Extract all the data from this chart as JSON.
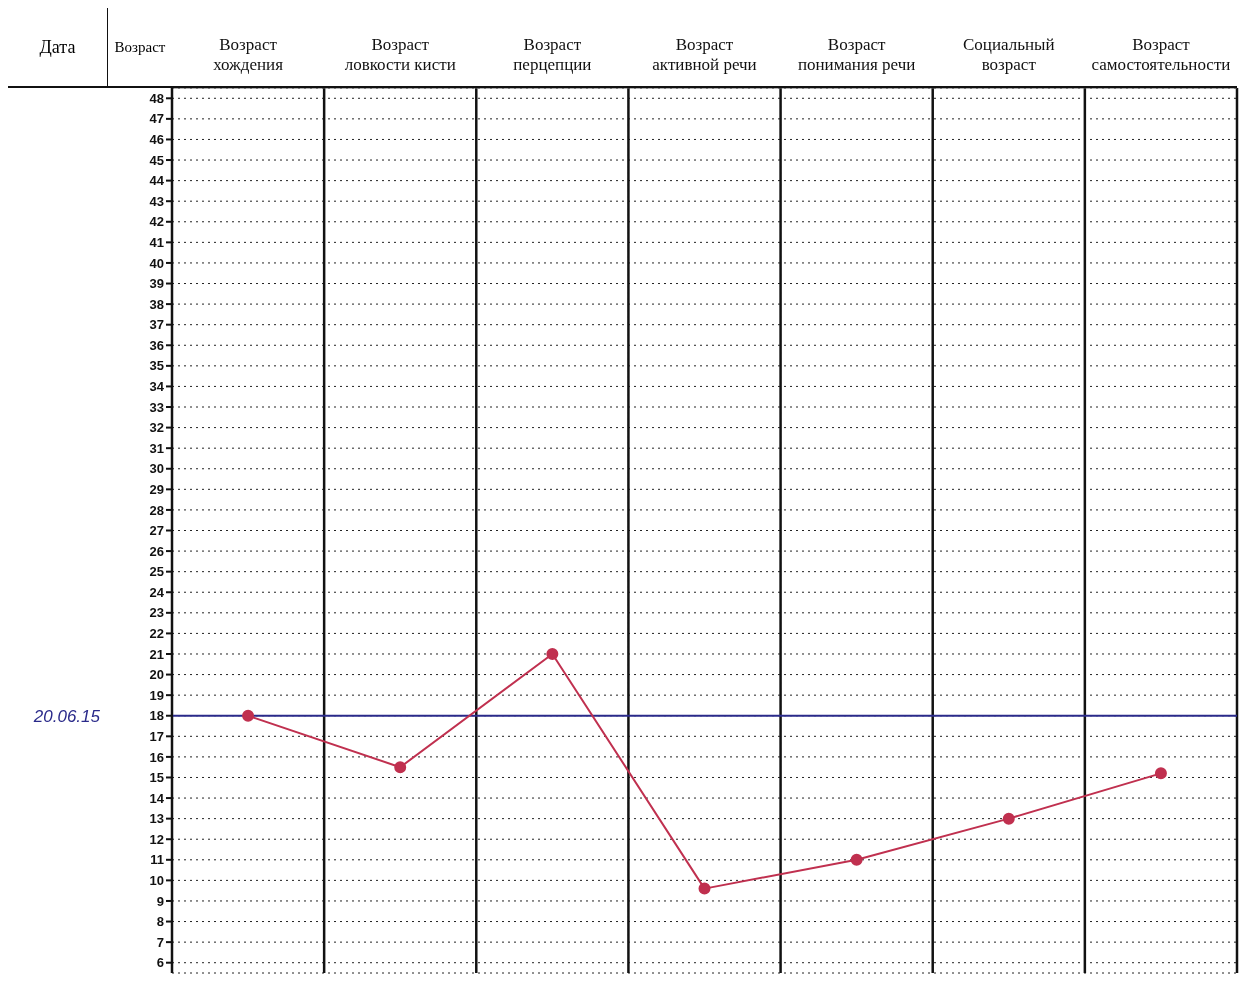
{
  "chart_data": {
    "type": "line",
    "categories": [
      "Возраст хождения",
      "Возраст ловкости кисти",
      "Возраст перцепции",
      "Возраст активной речи",
      "Возраст понимания речи",
      "Социальный возраст",
      "Возраст самостоятельности"
    ],
    "series": [
      {
        "color": "#c0304f",
        "values": [
          18,
          15.5,
          21,
          9.6,
          11,
          13,
          15.2
        ]
      }
    ],
    "ylabel": "Возраст",
    "annotations": [
      "Дата"
    ],
    "ylim": [
      5.5,
      48.5
    ],
    "yticks": [
      6,
      7,
      8,
      9,
      10,
      11,
      12,
      13,
      14,
      15,
      16,
      17,
      18,
      19,
      20,
      21,
      22,
      23,
      24,
      25,
      26,
      27,
      28,
      29,
      30,
      31,
      32,
      33,
      34,
      35,
      36,
      37,
      38,
      39,
      40,
      41,
      42,
      43,
      44,
      45,
      46,
      47,
      48
    ],
    "ref_lines": [
      {
        "axis": "y",
        "value": 18,
        "label": "20.06.15",
        "color": "#2a2a8a"
      }
    ],
    "grid": true,
    "marker": "circle",
    "line_style": "solid",
    "legend": false
  }
}
